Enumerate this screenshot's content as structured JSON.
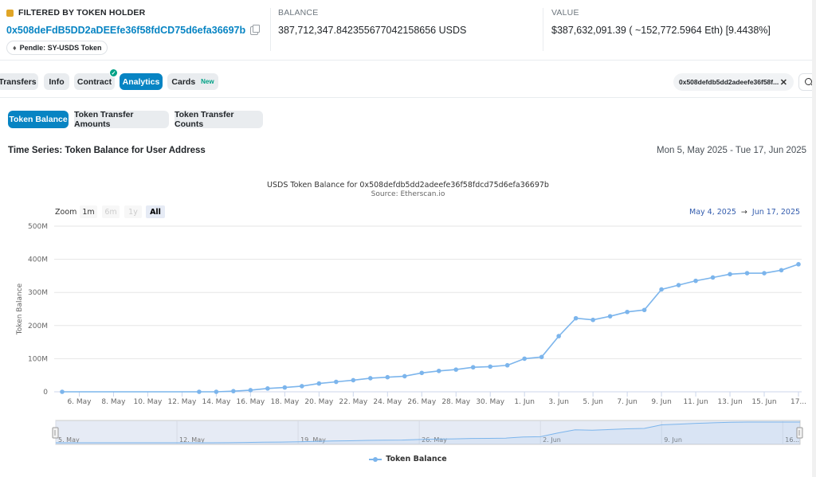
{
  "summary": {
    "holder_label": "FILTERED BY TOKEN HOLDER",
    "holder_address": "0x508deFdB5DD2aDEEfe36f58fdCD75d6efa36697b",
    "tag": "Pendle: SY-USDS Token",
    "balance_label": "BALANCE",
    "balance_value": "387,712,347.842355677042158656 USDS",
    "value_label": "VALUE",
    "value_value": "$387,632,091.39 ( ~152,772.5964 Eth) [9.4438%]"
  },
  "tabs": [
    {
      "label": "Transfers",
      "active": false
    },
    {
      "label": "Info",
      "active": false
    },
    {
      "label": "Contract",
      "active": false
    },
    {
      "label": "Analytics",
      "active": true
    },
    {
      "label": "Cards",
      "active": false,
      "badge": "New"
    }
  ],
  "filter_chip": "0x508defdb5dd2adeefe36f58f...",
  "subtabs": [
    {
      "label": "Token Balance",
      "active": true
    },
    {
      "label": "Token Transfer Amounts",
      "active": false
    },
    {
      "label": "Token Transfer Counts",
      "active": false
    }
  ],
  "timeseries": {
    "title": "Time Series: Token Balance for User Address",
    "range": "Mon 5, May 2025 - Tue 17, Jun 2025"
  },
  "zoom": {
    "label": "Zoom",
    "buttons": [
      {
        "label": "1m",
        "state": "normal"
      },
      {
        "label": "6m",
        "state": "disabled"
      },
      {
        "label": "1y",
        "state": "disabled"
      },
      {
        "label": "All",
        "state": "active"
      }
    ],
    "from": "May 4, 2025",
    "to": "Jun 17, 2025"
  },
  "colors": {
    "accent": "#0784c3",
    "series": "#7cb5ec",
    "new_badge": "#00a186"
  },
  "chart_data": {
    "type": "line",
    "title": "USDS Token Balance for 0x508defdb5dd2adeefe36f58fdcd75d6efa36697b",
    "subtitle": "Source: Etherscan.io",
    "ylabel": "Token Balance",
    "ylim": [
      0,
      500000000
    ],
    "yticks": [
      "0",
      "100M",
      "200M",
      "300M",
      "400M",
      "500M"
    ],
    "xticks": [
      "6. May",
      "8. May",
      "10. May",
      "12. May",
      "14. May",
      "16. May",
      "18. May",
      "20. May",
      "22. May",
      "24. May",
      "26. May",
      "28. May",
      "30. May",
      "1. Jun",
      "3. Jun",
      "5. Jun",
      "7. Jun",
      "9. Jun",
      "11. Jun",
      "13. Jun",
      "15. Jun",
      "17..."
    ],
    "navigator_ticks": [
      "5. May",
      "12. May",
      "19. May",
      "26. May",
      "2. Jun",
      "9. Jun",
      "16..."
    ],
    "legend": "Token Balance",
    "grid": true,
    "series": [
      {
        "name": "Token Balance",
        "points": [
          [
            "2025-05-05",
            0
          ],
          [
            "2025-05-13",
            0
          ],
          [
            "2025-05-14",
            0
          ],
          [
            "2025-05-15",
            2000000
          ],
          [
            "2025-05-16",
            5000000
          ],
          [
            "2025-05-17",
            10000000
          ],
          [
            "2025-05-18",
            13000000
          ],
          [
            "2025-05-19",
            17000000
          ],
          [
            "2025-05-20",
            25000000
          ],
          [
            "2025-05-21",
            30000000
          ],
          [
            "2025-05-22",
            35000000
          ],
          [
            "2025-05-23",
            41000000
          ],
          [
            "2025-05-24",
            44000000
          ],
          [
            "2025-05-25",
            47000000
          ],
          [
            "2025-05-26",
            57000000
          ],
          [
            "2025-05-27",
            63000000
          ],
          [
            "2025-05-28",
            67000000
          ],
          [
            "2025-05-29",
            74000000
          ],
          [
            "2025-05-30",
            76000000
          ],
          [
            "2025-05-31",
            80000000
          ],
          [
            "2025-06-01",
            100000000
          ],
          [
            "2025-06-02",
            105000000
          ],
          [
            "2025-06-03",
            168000000
          ],
          [
            "2025-06-04",
            222000000
          ],
          [
            "2025-06-05",
            217000000
          ],
          [
            "2025-06-06",
            228000000
          ],
          [
            "2025-06-07",
            241000000
          ],
          [
            "2025-06-08",
            247000000
          ],
          [
            "2025-06-09",
            309000000
          ],
          [
            "2025-06-10",
            322000000
          ],
          [
            "2025-06-11",
            335000000
          ],
          [
            "2025-06-12",
            345000000
          ],
          [
            "2025-06-13",
            355000000
          ],
          [
            "2025-06-14",
            358000000
          ],
          [
            "2025-06-15",
            358000000
          ],
          [
            "2025-06-16",
            367000000
          ],
          [
            "2025-06-17",
            385000000
          ]
        ]
      }
    ]
  }
}
